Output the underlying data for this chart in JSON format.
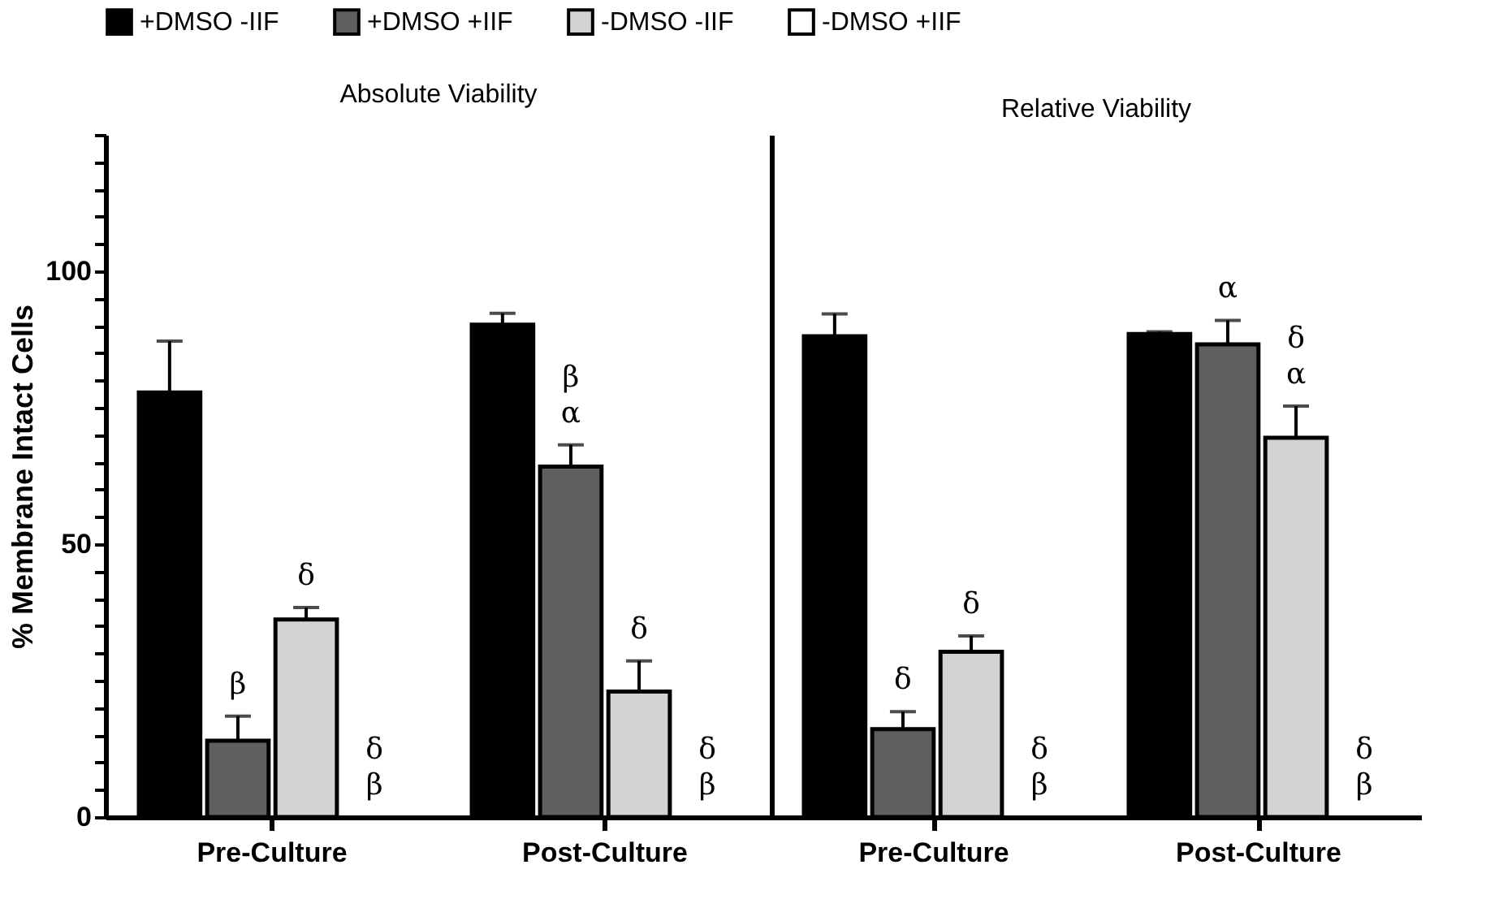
{
  "chart_data": [
    {
      "type": "bar",
      "title": "Absolute Viability",
      "ylabel": "% Membrane Intact Cells",
      "categories": [
        "Pre-Culture",
        "Post-Culture"
      ],
      "ylim": [
        0,
        125
      ],
      "yticks": [
        0,
        {
          "value": 5,
          "label": null
        },
        {
          "value": 10,
          "label": null
        },
        {
          "value": 15,
          "label": null
        },
        {
          "value": 20,
          "label": null
        },
        {
          "value": 25,
          "label": null
        },
        {
          "value": 30,
          "label": null
        },
        {
          "value": 35,
          "label": null
        },
        {
          "value": 40,
          "label": null
        },
        {
          "value": 45,
          "label": null
        },
        50,
        {
          "value": 55,
          "label": null
        },
        {
          "value": 60,
          "label": null
        },
        {
          "value": 65,
          "label": null
        },
        {
          "value": 70,
          "label": null
        },
        {
          "value": 75,
          "label": null
        },
        {
          "value": 80,
          "label": null
        },
        {
          "value": 85,
          "label": null
        },
        {
          "value": 90,
          "label": null
        },
        {
          "value": 95,
          "label": null
        },
        100,
        {
          "value": 105,
          "label": null
        },
        {
          "value": 110,
          "label": null
        },
        {
          "value": 115,
          "label": null
        },
        {
          "value": 120,
          "label": null
        },
        {
          "value": 125,
          "label": null
        }
      ],
      "legend": "top",
      "grid": false,
      "series": [
        {
          "name": "+DMSO -IIF",
          "color": "#000000",
          "values": [
            77.8,
            90.2
          ],
          "errors": [
            [
              77.8,
              87.2
            ],
            [
              90.2,
              92.3
            ]
          ]
        },
        {
          "name": "+DMSO +IIF",
          "color": "#5f5f5f",
          "values": [
            14.0,
            64.2
          ],
          "errors": [
            [
              14.0,
              18.5
            ],
            [
              64.2,
              68.2
            ]
          ],
          "value_labels": [
            "β",
            "β\nα"
          ]
        },
        {
          "name": "-DMSO -IIF",
          "color": "#d3d3d3",
          "values": [
            36.2,
            23.0
          ],
          "errors": [
            [
              36.2,
              38.4
            ],
            [
              23.0,
              28.6
            ]
          ],
          "value_labels": [
            "δ",
            "δ"
          ]
        },
        {
          "name": "-DMSO +IIF",
          "color": "#ffffff",
          "values": [
            null,
            null
          ],
          "value_labels": [
            "δ\nβ",
            "δ\nβ"
          ]
        }
      ]
    },
    {
      "type": "bar",
      "title": "Relative Viability",
      "categories": [
        "Pre-Culture",
        "Post-Culture"
      ],
      "ylim": [
        0,
        125
      ],
      "tick_labels": "x",
      "grid": false,
      "series": [
        {
          "color": "#000000",
          "values": [
            88.1,
            88.5
          ],
          "errors": [
            [
              88.1,
              92.2
            ],
            [
              88.5,
              88.9
            ]
          ]
        },
        {
          "color": "#5f5f5f",
          "values": [
            16.1,
            86.6
          ],
          "errors": [
            [
              16.1,
              19.3
            ],
            [
              86.6,
              91.0
            ]
          ],
          "value_labels": [
            "δ",
            "α"
          ]
        },
        {
          "color": "#d3d3d3",
          "values": [
            30.3,
            69.5
          ],
          "errors": [
            [
              30.3,
              33.2
            ],
            [
              69.5,
              75.3
            ]
          ],
          "value_labels": [
            "δ",
            "δ\nα"
          ]
        },
        {
          "color": "#ffffff",
          "values": [
            null,
            null
          ],
          "value_labels": [
            "δ\nβ",
            "δ\nβ"
          ]
        }
      ]
    }
  ]
}
